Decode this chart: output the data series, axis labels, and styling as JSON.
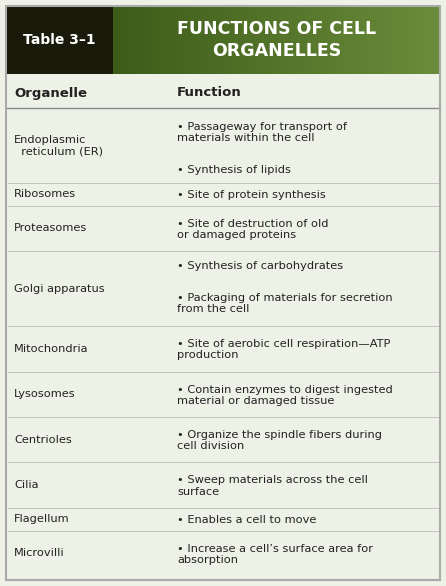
{
  "title_left": "Table 3–1",
  "title_right": "FUNCTIONS OF CELL\nORGANELLES",
  "header_organelle": "Organelle",
  "header_function": "Function",
  "title_left_bg": "#1a1a0a",
  "title_right_bg": "#3d5c1a",
  "title_right_bg2": "#6b8c3a",
  "header_bg": "#eef2e6",
  "table_bg": "#eef2e6",
  "border_color": "#aaaaaa",
  "text_color": "#222222",
  "col_split": 0.38,
  "rows": [
    {
      "organelle": "Endoplasmic\n  reticulum (ER)",
      "functions": [
        "Passageway for transport of\nmaterials within the cell",
        "Synthesis of lipids"
      ]
    },
    {
      "organelle": "Ribosomes",
      "functions": [
        "Site of protein synthesis"
      ]
    },
    {
      "organelle": "Proteasomes",
      "functions": [
        "Site of destruction of old\nor damaged proteins"
      ]
    },
    {
      "organelle": "Golgi apparatus",
      "functions": [
        "Synthesis of carbohydrates",
        "Packaging of materials for secretion\nfrom the cell"
      ]
    },
    {
      "organelle": "Mitochondria",
      "functions": [
        "Site of aerobic cell respiration—ATP\nproduction"
      ]
    },
    {
      "organelle": "Lysosomes",
      "functions": [
        "Contain enzymes to digest ingested\nmaterial or damaged tissue"
      ]
    },
    {
      "organelle": "Centrioles",
      "functions": [
        "Organize the spindle fibers during\ncell division"
      ]
    },
    {
      "organelle": "Cilia",
      "functions": [
        "Sweep materials across the cell\nsurface"
      ]
    },
    {
      "organelle": "Flagellum",
      "functions": [
        "Enables a cell to move"
      ]
    },
    {
      "organelle": "Microvilli",
      "functions": [
        "Increase a cell’s surface area for\nabsorption"
      ]
    }
  ]
}
